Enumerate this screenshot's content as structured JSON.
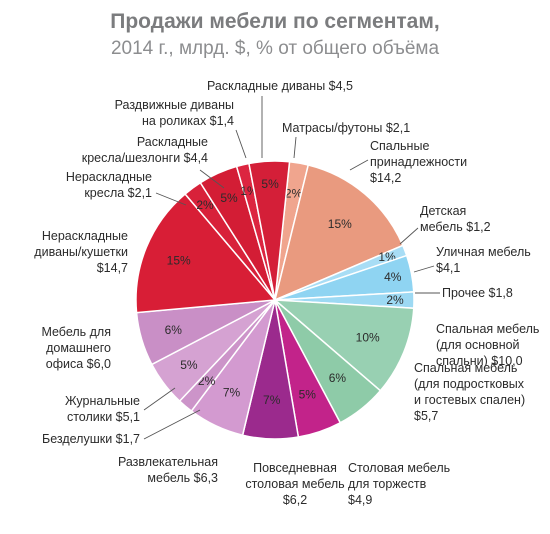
{
  "chart_data": {
    "type": "pie",
    "title": "Продажи мебели по сегментам,",
    "subtitle": "2014 г., млрд. $, % от общего объёма",
    "slices": [
      {
        "label_lines": [
          "Матрасы/футоны $2,1"
        ],
        "value": 2.1,
        "pct_label": "2%",
        "color": "#f0a58e"
      },
      {
        "label_lines": [
          "Спальные",
          "принадлежности",
          "$14,2"
        ],
        "value": 14.2,
        "pct_label": "15%",
        "color": "#e99a7f"
      },
      {
        "label_lines": [
          "Детская",
          "мебель $1,2"
        ],
        "value": 1.2,
        "pct_label": "1%",
        "color": "#a8ddf5"
      },
      {
        "label_lines": [
          "Уличная мебель",
          "$4,1"
        ],
        "value": 4.1,
        "pct_label": "4%",
        "color": "#8fd4f2"
      },
      {
        "label_lines": [
          "Прочее $1,8"
        ],
        "value": 1.8,
        "pct_label": "2%",
        "color": "#9dd9f3"
      },
      {
        "label_lines": [
          "Спальная мебель",
          "(для основной",
          "спальни) $10,0"
        ],
        "value": 10.0,
        "pct_label": "10%",
        "color": "#98d0b2"
      },
      {
        "label_lines": [
          "Спальная мебель",
          "(для подростковых",
          "и гостевых спален)",
          "$5,7"
        ],
        "value": 5.7,
        "pct_label": "6%",
        "color": "#8ecba8"
      },
      {
        "label_lines": [
          "Столовая мебель",
          "для торжеств",
          "$4,9"
        ],
        "value": 4.9,
        "pct_label": "5%",
        "color": "#c2238a"
      },
      {
        "label_lines": [
          "Повседневная",
          "столовая мебель",
          "$6,2"
        ],
        "value": 6.2,
        "pct_label": "7%",
        "color": "#9b2a8d"
      },
      {
        "label_lines": [
          "Развлекательная",
          "мебель $6,3"
        ],
        "value": 6.3,
        "pct_label": "7%",
        "color": "#d39ad0"
      },
      {
        "label_lines": [
          "Безделушки $1,7"
        ],
        "value": 1.7,
        "pct_label": "2%",
        "color": "#cc94c9"
      },
      {
        "label_lines": [
          "Журнальные",
          "столики $5,1"
        ],
        "value": 5.1,
        "pct_label": "5%",
        "color": "#d5a2d2"
      },
      {
        "label_lines": [
          "Мебель для",
          "домашнего",
          "офиса $6,0"
        ],
        "value": 6.0,
        "pct_label": "6%",
        "color": "#c98fc6"
      },
      {
        "label_lines": [
          "Нераскладные",
          "диваны/кушетки",
          "$14,7"
        ],
        "value": 14.7,
        "pct_label": "15%",
        "color": "#d81e36"
      },
      {
        "label_lines": [
          "Нераскладные",
          "кресла $2,1"
        ],
        "value": 2.1,
        "pct_label": "2%",
        "color": "#d8213a"
      },
      {
        "label_lines": [
          "Раскладные",
          "кресла/шезлонги $4,4"
        ],
        "value": 4.4,
        "pct_label": "5%",
        "color": "#d31d35"
      },
      {
        "label_lines": [
          "Раздвижные диваны",
          "на роликах $1,4"
        ],
        "value": 1.4,
        "pct_label": "1%",
        "color": "#dc2540"
      },
      {
        "label_lines": [
          "Раскладные диваны $4,5"
        ],
        "value": 4.5,
        "pct_label": "5%",
        "color": "#d41f38"
      }
    ]
  }
}
